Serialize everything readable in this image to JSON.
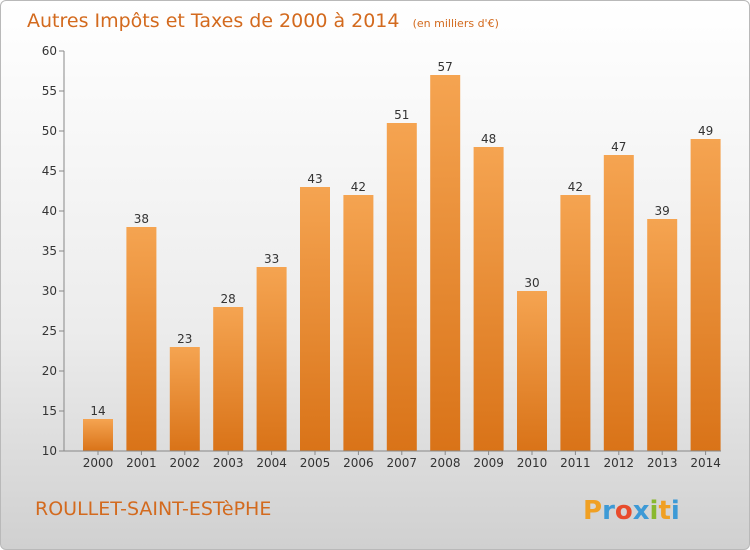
{
  "chart_data": {
    "type": "bar",
    "title": "Autres Impôts et Taxes de 2000 à 2014",
    "unit_note": "(en milliers d'€)",
    "categories": [
      "2000",
      "2001",
      "2002",
      "2003",
      "2004",
      "2005",
      "2006",
      "2007",
      "2008",
      "2009",
      "2010",
      "2011",
      "2012",
      "2013",
      "2014"
    ],
    "values": [
      14,
      38,
      23,
      28,
      33,
      43,
      42,
      51,
      57,
      48,
      30,
      42,
      47,
      39,
      49
    ],
    "ylim": [
      10,
      60
    ],
    "yticks": [
      10,
      15,
      20,
      25,
      30,
      35,
      40,
      45,
      50,
      55,
      60
    ],
    "grid": false,
    "bar_color_top": "#f5a451",
    "bar_color_bottom": "#d97318"
  },
  "commune": "ROULLET-SAINT-ESTèPHE",
  "logo": {
    "letters": [
      "P",
      "r",
      "o",
      "x",
      "i",
      "t",
      "i"
    ],
    "colors": [
      "#f0a023",
      "#3d9ad6",
      "#e84c2c",
      "#3d9ad6",
      "#89b82e",
      "#f0a023",
      "#3d9ad6"
    ]
  },
  "title_color": "#d36a1e"
}
